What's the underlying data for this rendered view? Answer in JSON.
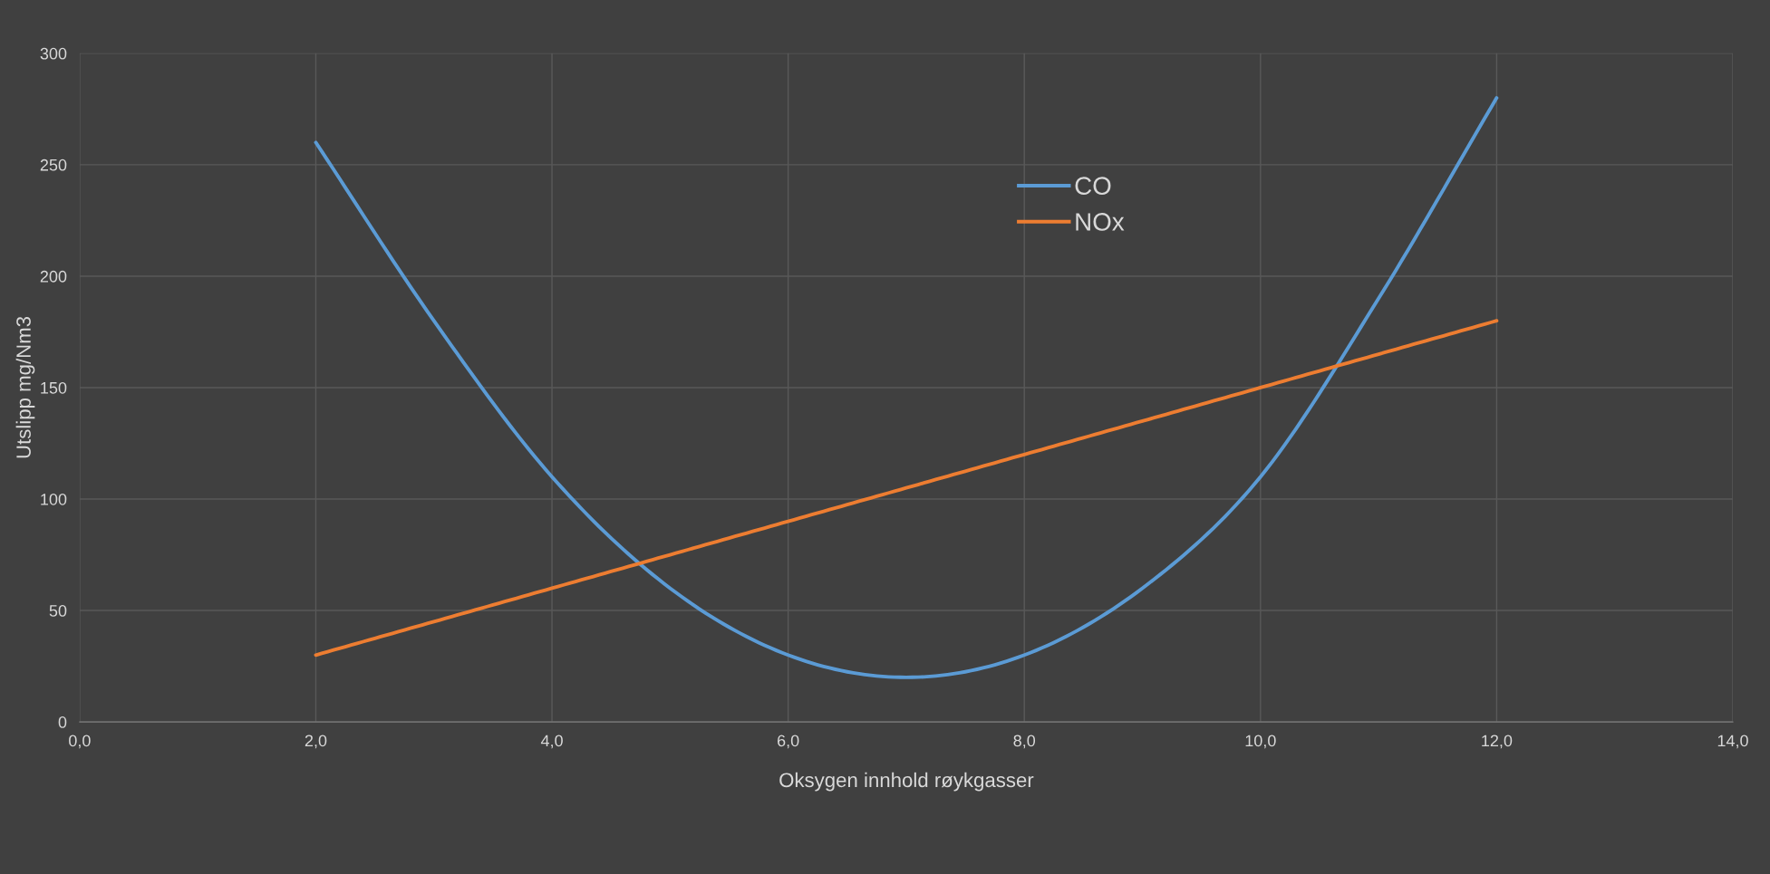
{
  "chart_data": {
    "type": "line",
    "xlabel": "Oksygen innhold røykgasser",
    "ylabel": "Utslipp mg/Nm3",
    "series": [
      {
        "name": "CO",
        "color": "#5b9bd5",
        "x": [
          2,
          3,
          4,
          5,
          6,
          7,
          8,
          9,
          10,
          11,
          12
        ],
        "values": [
          260,
          180,
          110,
          60,
          30,
          20,
          30,
          60,
          110,
          190,
          280
        ]
      },
      {
        "name": "NOx",
        "color": "#ed7d31",
        "x": [
          2,
          3,
          4,
          5,
          6,
          7,
          8,
          9,
          10,
          11,
          12
        ],
        "values": [
          30,
          45,
          60,
          75,
          90,
          105,
          120,
          135,
          150,
          165,
          180
        ]
      }
    ],
    "xlim": [
      0,
      14
    ],
    "xticks": [
      {
        "value": 0,
        "label": "0,0"
      },
      {
        "value": 2,
        "label": "2,0"
      },
      {
        "value": 4,
        "label": "4,0"
      },
      {
        "value": 6,
        "label": "6,0"
      },
      {
        "value": 8,
        "label": "8,0"
      },
      {
        "value": 10,
        "label": "10,0"
      },
      {
        "value": 12,
        "label": "12,0"
      },
      {
        "value": 14,
        "label": "14,0"
      }
    ],
    "ylim": [
      0,
      300
    ],
    "yticks": [
      0,
      50,
      100,
      150,
      200,
      250,
      300
    ],
    "grid": true,
    "legend": "top center",
    "marker": "none",
    "line_style": "solid"
  }
}
